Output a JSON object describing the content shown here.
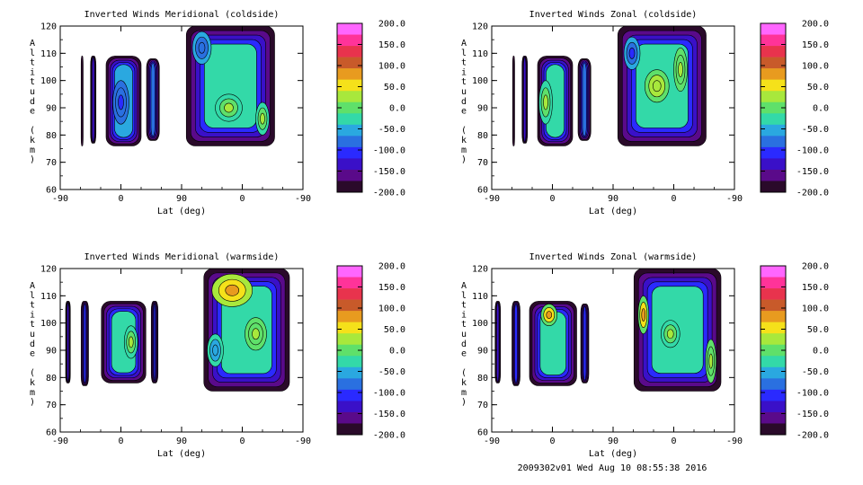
{
  "footer": "2009302v01 Wed Aug 10 08:55:38 2016",
  "colorbar": {
    "ticks": [
      "200.0",
      "150.0",
      "100.0",
      "50.0",
      "0.0",
      "-50.0",
      "-100.0",
      "-150.0",
      "-200.0"
    ],
    "colors": [
      "#ff66ff",
      "#ff3399",
      "#e8334d",
      "#c85a2a",
      "#e89b1f",
      "#f5e11a",
      "#a8e83c",
      "#5fe06a",
      "#33d9a8",
      "#2aa8e0",
      "#2a70e0",
      "#2a2aff",
      "#3a10c8",
      "#5a0a8a",
      "#2a0a2a"
    ]
  },
  "chart_data": [
    {
      "type": "heatmap",
      "title": "Inverted Winds Meridional (coldside)",
      "xlabel": "Lat (deg)",
      "ylabel": "Altitude (km)",
      "xticks": [
        "-90",
        "0",
        "90",
        "0",
        "-90"
      ],
      "yticks": [
        "120",
        "110",
        "100",
        "90",
        "80",
        "70",
        "60"
      ],
      "ylim": [
        60,
        120
      ],
      "zlim": [
        -200,
        200
      ],
      "regions": [
        {
          "x0": -59,
          "x1": -56,
          "y0": 76,
          "y1": 109,
          "level": -150
        },
        {
          "x0": -45,
          "x1": -37,
          "y0": 77,
          "y1": 109,
          "level": -130
        },
        {
          "x0": -22,
          "x1": 30,
          "y0": 76,
          "y1": 109,
          "level": -60
        },
        {
          "x0": 38,
          "x1": 57,
          "y0": 78,
          "y1": 108,
          "level": -90
        },
        {
          "x0": 97,
          "x1": 228,
          "y0": 76,
          "y1": 120,
          "level": -40
        }
      ],
      "features": [
        {
          "x": 0,
          "y": 92,
          "rx": 12,
          "ry": 8,
          "level": -100
        },
        {
          "x": 160,
          "y": 90,
          "rx": 20,
          "ry": 5,
          "level": 20
        },
        {
          "x": 120,
          "y": 112,
          "rx": 14,
          "ry": 6,
          "level": -90
        },
        {
          "x": 210,
          "y": 86,
          "rx": 10,
          "ry": 6,
          "level": 30
        }
      ]
    },
    {
      "type": "heatmap",
      "title": "Inverted Winds Zonal (coldside)",
      "xlabel": "Lat (deg)",
      "ylabel": "Altitude (km)",
      "xticks": [
        "-90",
        "0",
        "90",
        "0",
        "-90"
      ],
      "yticks": [
        "120",
        "110",
        "100",
        "90",
        "80",
        "70",
        "60"
      ],
      "ylim": [
        60,
        120
      ],
      "zlim": [
        -200,
        200
      ],
      "regions": [
        {
          "x0": -59,
          "x1": -56,
          "y0": 76,
          "y1": 109,
          "level": -150
        },
        {
          "x0": -45,
          "x1": -37,
          "y0": 77,
          "y1": 109,
          "level": -130
        },
        {
          "x0": -22,
          "x1": 30,
          "y0": 76,
          "y1": 109,
          "level": -40
        },
        {
          "x0": 38,
          "x1": 57,
          "y0": 78,
          "y1": 108,
          "level": -90
        },
        {
          "x0": 97,
          "x1": 228,
          "y0": 76,
          "y1": 120,
          "level": -30
        }
      ],
      "features": [
        {
          "x": -10,
          "y": 92,
          "rx": 10,
          "ry": 8,
          "level": 20
        },
        {
          "x": 155,
          "y": 98,
          "rx": 18,
          "ry": 6,
          "level": 40
        },
        {
          "x": 118,
          "y": 110,
          "rx": 12,
          "ry": 6,
          "level": -110
        },
        {
          "x": 190,
          "y": 104,
          "rx": 10,
          "ry": 8,
          "level": 30
        }
      ]
    },
    {
      "type": "heatmap",
      "title": "Inverted Winds Meridional (warmside)",
      "xlabel": "Lat (deg)",
      "ylabel": "Altitude (km)",
      "xticks": [
        "-90",
        "0",
        "90",
        "0",
        "-90"
      ],
      "yticks": [
        "120",
        "110",
        "100",
        "90",
        "80",
        "70",
        "60"
      ],
      "ylim": [
        60,
        120
      ],
      "zlim": [
        -200,
        200
      ],
      "regions": [
        {
          "x0": -82,
          "x1": -75,
          "y0": 78,
          "y1": 108,
          "level": -130
        },
        {
          "x0": -59,
          "x1": -48,
          "y0": 77,
          "y1": 108,
          "level": -130
        },
        {
          "x0": -29,
          "x1": 37,
          "y0": 78,
          "y1": 108,
          "level": -40
        },
        {
          "x0": 45,
          "x1": 55,
          "y0": 78,
          "y1": 108,
          "level": -110
        },
        {
          "x0": 123,
          "x1": 250,
          "y0": 75,
          "y1": 120,
          "level": -20
        }
      ],
      "features": [
        {
          "x": 15,
          "y": 93,
          "rx": 10,
          "ry": 6,
          "level": 30
        },
        {
          "x": 165,
          "y": 112,
          "rx": 30,
          "ry": 6,
          "level": 90
        },
        {
          "x": 200,
          "y": 96,
          "rx": 16,
          "ry": 6,
          "level": 20
        },
        {
          "x": 140,
          "y": 90,
          "rx": 12,
          "ry": 6,
          "level": -60
        }
      ]
    },
    {
      "type": "heatmap",
      "title": "Inverted Winds Zonal (warmside)",
      "xlabel": "Lat (deg)",
      "ylabel": "Altitude (km)",
      "xticks": [
        "-90",
        "0",
        "90",
        "0",
        "-90"
      ],
      "yticks": [
        "120",
        "110",
        "100",
        "90",
        "80",
        "70",
        "60"
      ],
      "ylim": [
        60,
        120
      ],
      "zlim": [
        -200,
        200
      ],
      "regions": [
        {
          "x0": -85,
          "x1": -77,
          "y0": 78,
          "y1": 108,
          "level": -130
        },
        {
          "x0": -60,
          "x1": -48,
          "y0": 77,
          "y1": 108,
          "level": -130
        },
        {
          "x0": -34,
          "x1": 36,
          "y0": 77,
          "y1": 108,
          "level": -30
        },
        {
          "x0": 42,
          "x1": 54,
          "y0": 78,
          "y1": 107,
          "level": -110
        },
        {
          "x0": 121,
          "x1": 250,
          "y0": 75,
          "y1": 120,
          "level": -40
        }
      ],
      "features": [
        {
          "x": -5,
          "y": 103,
          "rx": 12,
          "ry": 4,
          "level": 80
        },
        {
          "x": 135,
          "y": 103,
          "rx": 8,
          "ry": 7,
          "level": 100
        },
        {
          "x": 175,
          "y": 96,
          "rx": 14,
          "ry": 5,
          "level": 30
        },
        {
          "x": 235,
          "y": 86,
          "rx": 8,
          "ry": 8,
          "level": 40
        }
      ]
    }
  ]
}
